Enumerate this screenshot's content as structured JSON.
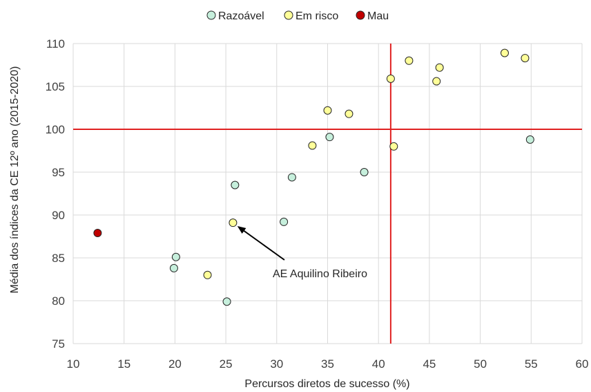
{
  "chart_data": {
    "type": "scatter",
    "xlabel": "Percursos diretos de sucesso (%)",
    "ylabel": "Média dos índices da CE 12º ano (2015-2020)",
    "xlim": [
      10,
      60
    ],
    "ylim": [
      75,
      110
    ],
    "xticks": [
      10,
      15,
      20,
      25,
      30,
      35,
      40,
      45,
      50,
      55,
      60
    ],
    "yticks": [
      75,
      80,
      85,
      90,
      95,
      100,
      105,
      110
    ],
    "grid": true,
    "legend_position": "top-center",
    "reference_lines": {
      "x": 41.2,
      "y": 100,
      "color": "#e02020"
    },
    "series": [
      {
        "name": "Razoável",
        "color": "#c6efdc",
        "points": [
          {
            "x": 19.9,
            "y": 83.8
          },
          {
            "x": 20.1,
            "y": 85.1
          },
          {
            "x": 25.1,
            "y": 79.9
          },
          {
            "x": 25.9,
            "y": 93.5
          },
          {
            "x": 30.7,
            "y": 89.2
          },
          {
            "x": 31.5,
            "y": 94.4
          },
          {
            "x": 35.2,
            "y": 99.1
          },
          {
            "x": 38.6,
            "y": 95.0
          },
          {
            "x": 54.9,
            "y": 98.8
          }
        ]
      },
      {
        "name": "Em risco",
        "color": "#ffff99",
        "points": [
          {
            "x": 23.2,
            "y": 83.0
          },
          {
            "x": 25.7,
            "y": 89.1
          },
          {
            "x": 33.5,
            "y": 98.1
          },
          {
            "x": 35.0,
            "y": 102.2
          },
          {
            "x": 37.1,
            "y": 101.8
          },
          {
            "x": 41.2,
            "y": 105.9
          },
          {
            "x": 41.5,
            "y": 98.0
          },
          {
            "x": 43.0,
            "y": 108.0
          },
          {
            "x": 45.7,
            "y": 105.6
          },
          {
            "x": 46.0,
            "y": 107.2
          },
          {
            "x": 52.4,
            "y": 108.9
          },
          {
            "x": 54.4,
            "y": 108.3
          }
        ]
      },
      {
        "name": "Mau",
        "color": "#c00000",
        "points": [
          {
            "x": 12.4,
            "y": 87.9
          }
        ]
      }
    ],
    "annotations": [
      {
        "text": "AE Aquilino Ribeiro",
        "points_to": {
          "x": 25.7,
          "y": 89.1
        }
      }
    ]
  }
}
